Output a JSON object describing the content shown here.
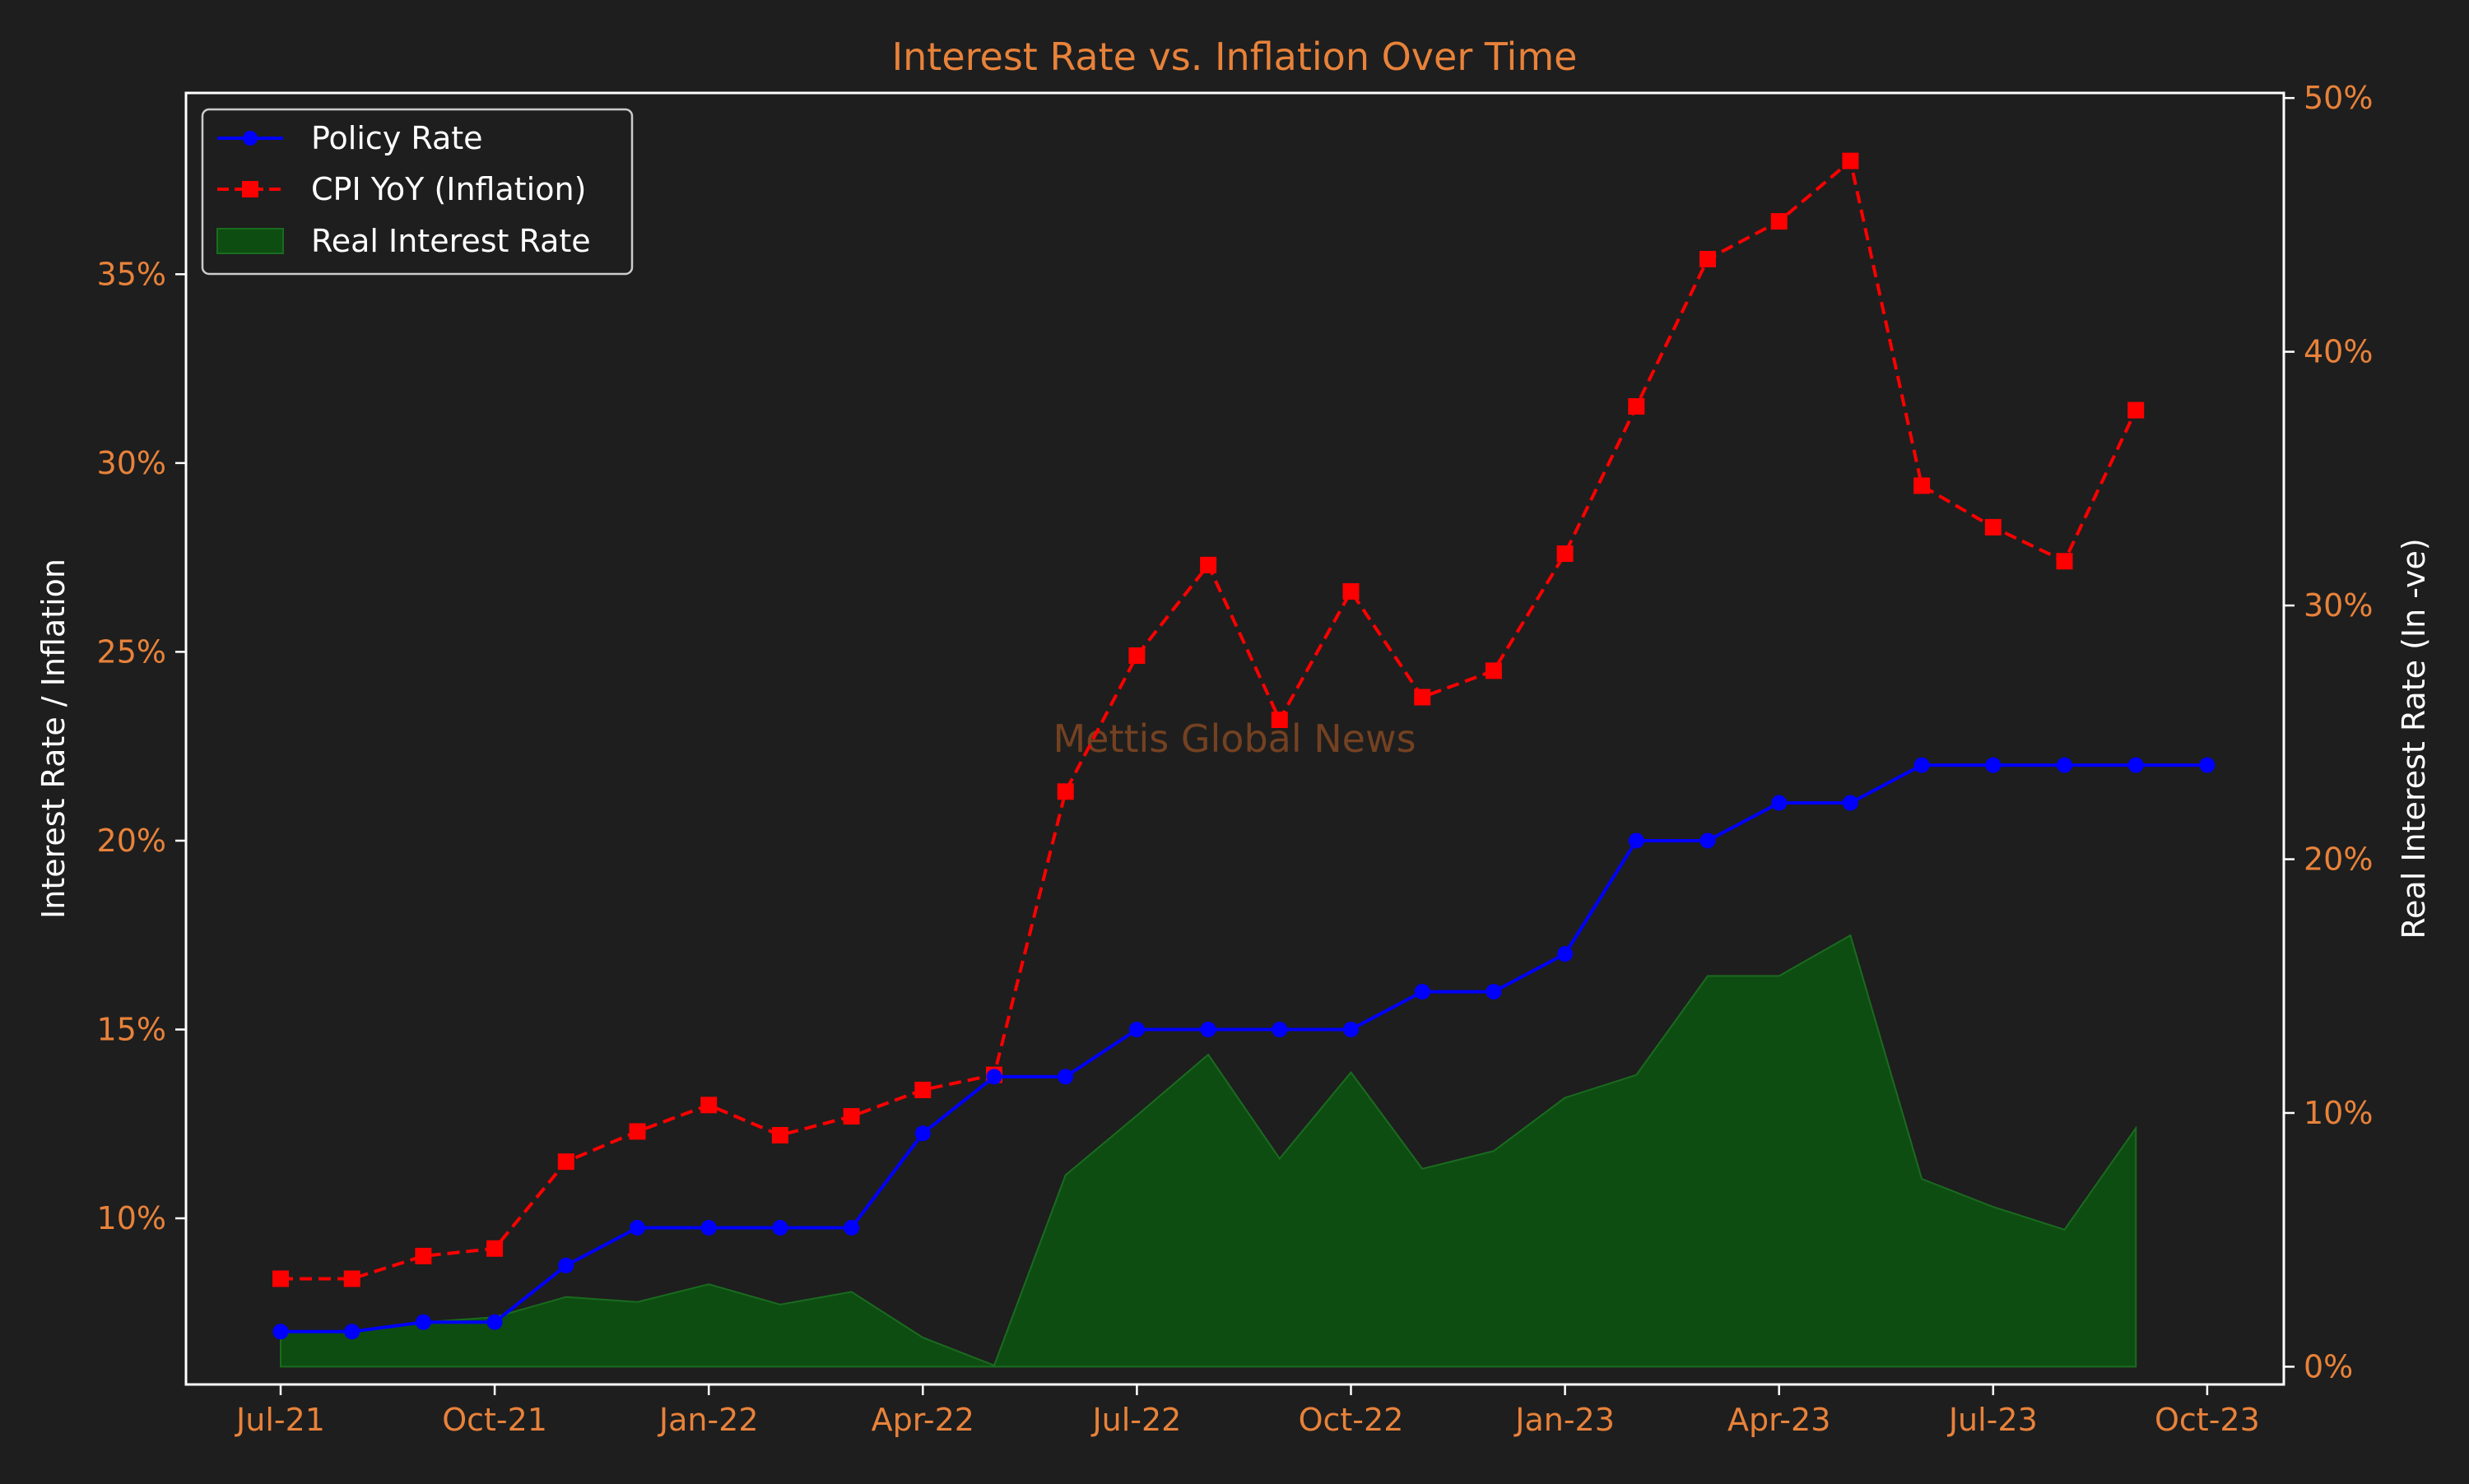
{
  "chart_data": {
    "type": "line",
    "title": "Interest Rate vs. Inflation Over Time",
    "ylabel": "Interest Rate / Inflation",
    "ylabel_right": "Real Interest Rate (In -ve)",
    "watermark": "Mettis Global News",
    "x_dates": [
      "2021-07",
      "2021-08",
      "2021-09",
      "2021-10",
      "2021-11",
      "2021-12",
      "2022-01",
      "2022-02",
      "2022-03",
      "2022-04",
      "2022-05",
      "2022-06",
      "2022-07",
      "2022-08",
      "2022-09",
      "2022-10",
      "2022-11",
      "2022-12",
      "2023-01",
      "2023-02",
      "2023-03",
      "2023-04",
      "2023-05",
      "2023-06",
      "2023-07",
      "2023-08",
      "2023-09",
      "2023-10"
    ],
    "x_ticks": [
      {
        "date": "2021-07",
        "label": "Jul-21"
      },
      {
        "date": "2021-10",
        "label": "Oct-21"
      },
      {
        "date": "2022-01",
        "label": "Jan-22"
      },
      {
        "date": "2022-04",
        "label": "Apr-22"
      },
      {
        "date": "2022-07",
        "label": "Jul-22"
      },
      {
        "date": "2022-10",
        "label": "Oct-22"
      },
      {
        "date": "2023-01",
        "label": "Jan-23"
      },
      {
        "date": "2023-04",
        "label": "Apr-23"
      },
      {
        "date": "2023-07",
        "label": "Jul-23"
      },
      {
        "date": "2023-10",
        "label": "Oct-23"
      }
    ],
    "ylim": [
      5.6,
      39.8
    ],
    "yticks": [
      10,
      15,
      20,
      25,
      30,
      35
    ],
    "ytick_labels": [
      "10%",
      "15%",
      "20%",
      "25%",
      "30%",
      "35%"
    ],
    "ylim_right": [
      -0.7,
      50.2
    ],
    "yticks_right": [
      0,
      10,
      20,
      30,
      40,
      50
    ],
    "ytick_labels_right": [
      "0%",
      "10%",
      "20%",
      "30%",
      "40%",
      "50%"
    ],
    "series": [
      {
        "name": "Policy Rate",
        "axis": "left",
        "color": "#0000ff",
        "style": "solid",
        "marker": "circle",
        "values": [
          7.0,
          7.0,
          7.25,
          7.25,
          8.75,
          9.75,
          9.75,
          9.75,
          9.75,
          12.25,
          13.75,
          13.75,
          15.0,
          15.0,
          15.0,
          15.0,
          16.0,
          16.0,
          17.0,
          20.0,
          20.0,
          21.0,
          21.0,
          22.0,
          22.0,
          22.0,
          22.0,
          22.0
        ]
      },
      {
        "name": "CPI YoY (Inflation)",
        "axis": "left",
        "color": "#ff0000",
        "style": "dashed",
        "marker": "square",
        "values": [
          8.4,
          8.4,
          9.0,
          9.2,
          11.5,
          12.3,
          13.0,
          12.2,
          12.7,
          13.4,
          13.8,
          21.3,
          24.9,
          27.3,
          23.2,
          26.6,
          23.8,
          24.5,
          27.6,
          31.5,
          35.4,
          36.4,
          38.0,
          29.4,
          28.3,
          27.4,
          31.4
        ]
      },
      {
        "name": "Real Interest Rate",
        "axis": "right",
        "type": "area",
        "color": "#0e4d12",
        "values": [
          1.4,
          1.4,
          1.75,
          1.95,
          2.75,
          2.55,
          3.25,
          2.45,
          2.95,
          1.15,
          0.05,
          7.55,
          9.9,
          12.3,
          8.2,
          11.6,
          7.8,
          8.5,
          10.6,
          11.5,
          15.4,
          15.4,
          17.0,
          7.4,
          6.3,
          5.4,
          9.4
        ]
      }
    ],
    "legend_position": "top-left",
    "grid": false
  }
}
